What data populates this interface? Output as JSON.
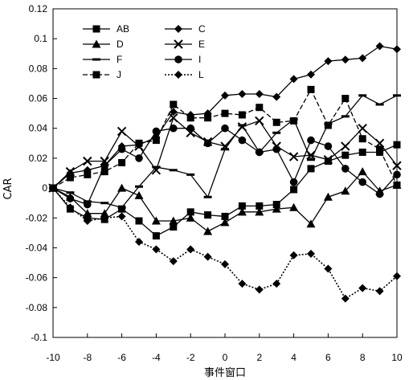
{
  "chart_data": {
    "type": "line",
    "title": "",
    "xlabel": "事件窗口",
    "ylabel": "CAR",
    "xlim": [
      -10,
      10
    ],
    "ylim": [
      -0.1,
      0.12
    ],
    "x_ticks": [
      -10,
      -8,
      -6,
      -4,
      -2,
      0,
      2,
      4,
      6,
      8,
      10
    ],
    "x_tick_labels": [
      "-10",
      "-8",
      "-6",
      "-4",
      "-2",
      "0",
      "2",
      "4",
      "6",
      "8",
      "10"
    ],
    "y_ticks": [
      -0.1,
      -0.08,
      -0.06,
      -0.04,
      -0.02,
      0,
      0.02,
      0.04,
      0.06,
      0.08,
      0.1,
      0.12
    ],
    "y_tick_labels": [
      "-0.1",
      "-0.08",
      "-0.06",
      "-0.04",
      "-0.02",
      "0",
      "0.02",
      "0.04",
      "0.06",
      "0.08",
      "0.1",
      "0.12"
    ],
    "grid": false,
    "legend_position": "top-left",
    "x": [
      -10,
      -9,
      -8,
      -7,
      -6,
      -5,
      -4,
      -3,
      -2,
      -1,
      0,
      1,
      2,
      3,
      4,
      5,
      6,
      7,
      8,
      9,
      10
    ],
    "series": [
      {
        "name": "AB",
        "marker": "square",
        "dash": "solid",
        "color": "#000000",
        "values": [
          0,
          -0.014,
          -0.02,
          -0.021,
          -0.014,
          -0.022,
          -0.032,
          -0.026,
          -0.016,
          -0.018,
          -0.019,
          -0.012,
          -0.012,
          -0.011,
          -0.001,
          0.013,
          0.018,
          0.022,
          0.024,
          0.024,
          0.029
        ]
      },
      {
        "name": "C",
        "marker": "diamond",
        "dash": "solid",
        "color": "#000000",
        "values": [
          0,
          0.01,
          0.012,
          0.015,
          0.028,
          0.029,
          0.034,
          0.051,
          0.049,
          0.05,
          0.062,
          0.063,
          0.063,
          0.061,
          0.073,
          0.076,
          0.085,
          0.086,
          0.087,
          0.095,
          0.093
        ]
      },
      {
        "name": "D",
        "marker": "triangle",
        "dash": "solid",
        "color": "#000000",
        "values": [
          0,
          -0.006,
          -0.017,
          -0.017,
          0,
          -0.005,
          -0.022,
          -0.022,
          -0.02,
          -0.029,
          -0.023,
          -0.016,
          -0.016,
          -0.014,
          -0.013,
          -0.024,
          -0.006,
          -0.002,
          0.011,
          -0.002,
          0.002
        ]
      },
      {
        "name": "E",
        "marker": "x",
        "dash": "solid",
        "color": "#000000",
        "values": [
          0,
          0.011,
          0.018,
          0.018,
          0.038,
          0.028,
          0.012,
          0.047,
          0.037,
          0.031,
          0.028,
          0.041,
          0.045,
          0.028,
          0.021,
          0.022,
          0.019,
          0.028,
          0.04,
          0.03,
          0.015
        ]
      },
      {
        "name": "F",
        "marker": "dash",
        "dash": "solid",
        "color": "#000000",
        "values": [
          0,
          -0.003,
          -0.009,
          -0.01,
          -0.013,
          0.001,
          0.014,
          0.012,
          0.009,
          -0.006,
          0.026,
          0.042,
          0.024,
          0.037,
          0.046,
          0.019,
          0.043,
          0.048,
          0.062,
          0.056,
          0.062
        ]
      },
      {
        "name": "I",
        "marker": "circle",
        "dash": "solid",
        "color": "#000000",
        "values": [
          0,
          -0.007,
          -0.011,
          0.015,
          0.026,
          0.02,
          0.038,
          0.04,
          0.04,
          0.03,
          0.04,
          0.032,
          0.024,
          0.026,
          0.004,
          0.032,
          0.028,
          0.013,
          0.004,
          -0.004,
          0.009
        ]
      },
      {
        "name": "J",
        "marker": "square",
        "dash": "dashed",
        "color": "#000000",
        "values": [
          0,
          0.007,
          0.009,
          0.011,
          0.017,
          0.03,
          0.032,
          0.056,
          0.047,
          0.047,
          0.05,
          0.049,
          0.054,
          0.044,
          0.045,
          0.066,
          0.042,
          0.06,
          0.033,
          0.026,
          0.002
        ]
      },
      {
        "name": "L",
        "marker": "diamond",
        "dash": "dotted",
        "color": "#000000",
        "values": [
          0,
          -0.013,
          -0.022,
          -0.02,
          -0.019,
          -0.036,
          -0.041,
          -0.049,
          -0.041,
          -0.046,
          -0.051,
          -0.064,
          -0.068,
          -0.064,
          -0.045,
          -0.044,
          -0.054,
          -0.074,
          -0.067,
          -0.069,
          -0.059
        ]
      }
    ]
  }
}
